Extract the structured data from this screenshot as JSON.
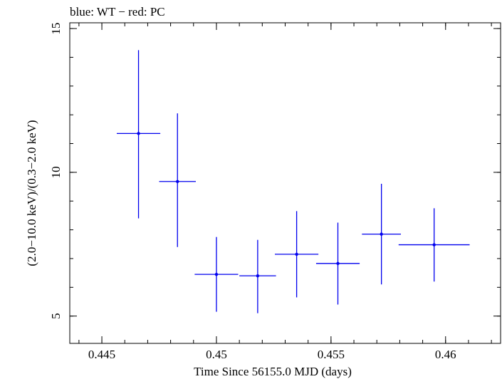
{
  "header": {
    "legend_note": "blue: WT − red: PC"
  },
  "chart_data": {
    "type": "scatter",
    "title": "blue: WT − red: PC",
    "xlabel": "Time Since 56155.0 MJD (days)",
    "ylabel": "(2.0−10.0 keV)/(0.3−2.0 keV)",
    "xlim": [
      0.4436,
      0.4624
    ],
    "ylim": [
      4.05,
      15.2
    ],
    "x_ticks": [
      0.445,
      0.45,
      0.455,
      0.46
    ],
    "x_tick_labels": [
      "0.445",
      "0.45",
      "0.455",
      "0.46"
    ],
    "y_ticks": [
      5,
      10,
      15
    ],
    "y_tick_labels": [
      "5",
      "10",
      "15"
    ],
    "grid": false,
    "series": [
      {
        "name": "WT",
        "color": "#0000ee",
        "points": [
          {
            "x": 0.4466,
            "xerr": 0.00095,
            "y": 11.35,
            "ylo": 8.4,
            "yhi": 14.25
          },
          {
            "x": 0.4483,
            "xerr": 0.0008,
            "y": 9.68,
            "ylo": 7.4,
            "yhi": 12.05
          },
          {
            "x": 0.45,
            "xerr": 0.00095,
            "y": 6.45,
            "ylo": 5.15,
            "yhi": 7.75
          },
          {
            "x": 0.4518,
            "xerr": 0.0008,
            "y": 6.4,
            "ylo": 5.1,
            "yhi": 7.65
          },
          {
            "x": 0.4535,
            "xerr": 0.00095,
            "y": 7.15,
            "ylo": 5.65,
            "yhi": 8.65
          },
          {
            "x": 0.4553,
            "xerr": 0.00095,
            "y": 6.83,
            "ylo": 5.4,
            "yhi": 8.25
          },
          {
            "x": 0.4572,
            "xerr": 0.00085,
            "y": 7.85,
            "ylo": 6.1,
            "yhi": 9.6
          },
          {
            "x": 0.4595,
            "xerr": 0.00155,
            "y": 7.48,
            "ylo": 6.2,
            "yhi": 8.75
          }
        ]
      }
    ]
  }
}
